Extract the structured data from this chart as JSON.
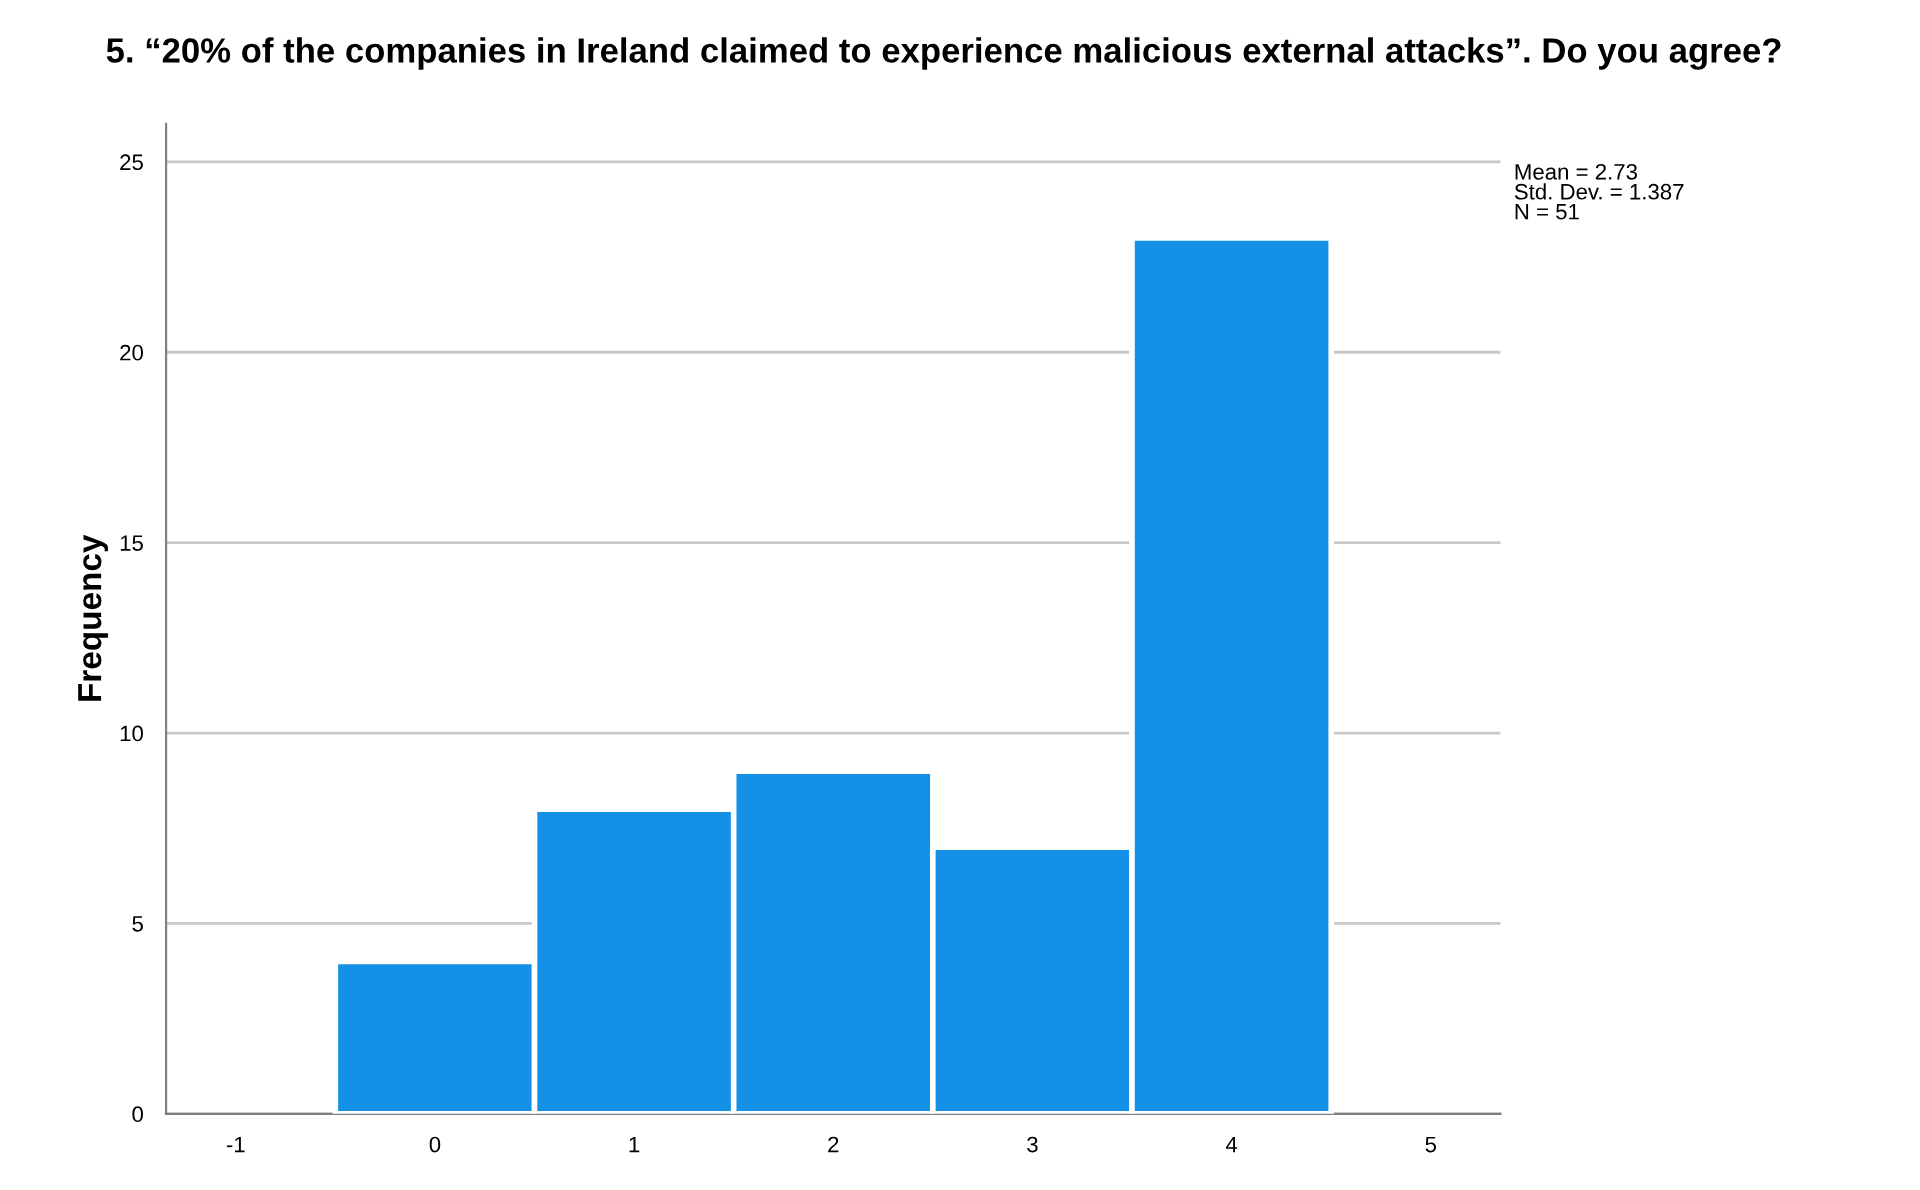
{
  "chart_data": {
    "type": "histogram",
    "title": "5. “20% of the companies in Ireland claimed to experience malicious external attacks”. Do you agree?",
    "ylabel": "Frequency",
    "bins": [
      -0.5,
      0.5,
      1.5,
      2.5,
      3.5,
      4.5
    ],
    "values": [
      4,
      8,
      9,
      7,
      23
    ],
    "color": "#1491e6",
    "xlim": [
      -1.35,
      5.35
    ],
    "xticks": [
      -1,
      0,
      1,
      2,
      3,
      4,
      5
    ],
    "ylim": [
      0,
      26
    ],
    "yticks": [
      0,
      5,
      10,
      15,
      20,
      25
    ],
    "grid": "y",
    "annotations": [
      "Mean = 2.73\nStd. Dev. = 1.387\nN = 51"
    ]
  }
}
